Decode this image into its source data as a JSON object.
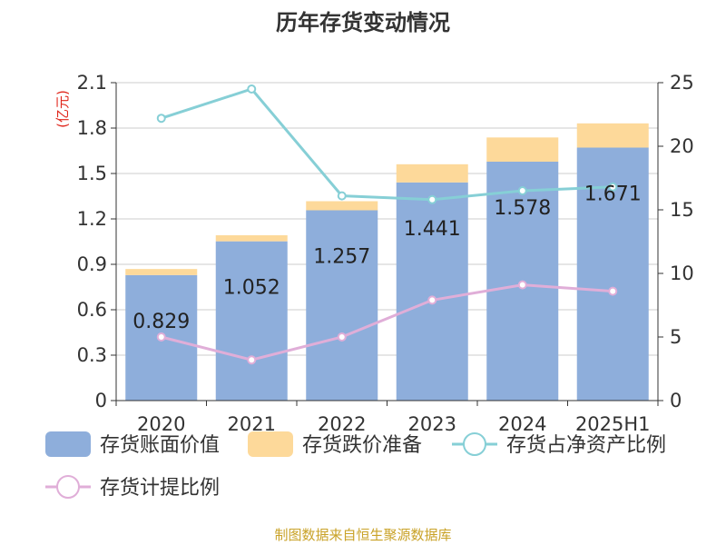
{
  "chart_data": {
    "type": "bar",
    "title": "历年存货变动情况",
    "left_axis_unit": "(亿元)",
    "categories": [
      "2020",
      "2021",
      "2022",
      "2023",
      "2024",
      "2025H1"
    ],
    "bar_series": [
      {
        "name": "存货账面价值",
        "color": "#8eaedb",
        "values": [
          0.829,
          1.052,
          1.257,
          1.441,
          1.578,
          1.671
        ]
      },
      {
        "name": "存货跌价准备",
        "color": "#fdd99a",
        "values": [
          0.04,
          0.04,
          0.06,
          0.12,
          0.16,
          0.16
        ]
      }
    ],
    "bar_data_labels": [
      "0.829",
      "1.052",
      "1.257",
      "1.441",
      "1.578",
      "1.671"
    ],
    "line_series": [
      {
        "name": "存货占净资产比例",
        "color": "#86cfd6",
        "axis": "right",
        "values": [
          22.2,
          24.5,
          16.1,
          15.8,
          16.5,
          16.8
        ]
      },
      {
        "name": "存货计提比例",
        "color": "#e0aed8",
        "axis": "right",
        "values": [
          5.0,
          3.2,
          5.0,
          7.9,
          9.1,
          8.6
        ]
      }
    ],
    "left_axis": {
      "ylim": [
        0,
        2.1
      ],
      "ticks": [
        "0",
        "0.3",
        "0.6",
        "0.9",
        "1.2",
        "1.5",
        "1.8",
        "2.1"
      ]
    },
    "right_axis": {
      "ylim": [
        0,
        25
      ],
      "ticks": [
        "0",
        "5",
        "10",
        "15",
        "20",
        "25"
      ]
    },
    "grid": true,
    "legend_position": "bottom"
  },
  "source_text": "制图数据来自恒生聚源数据库"
}
